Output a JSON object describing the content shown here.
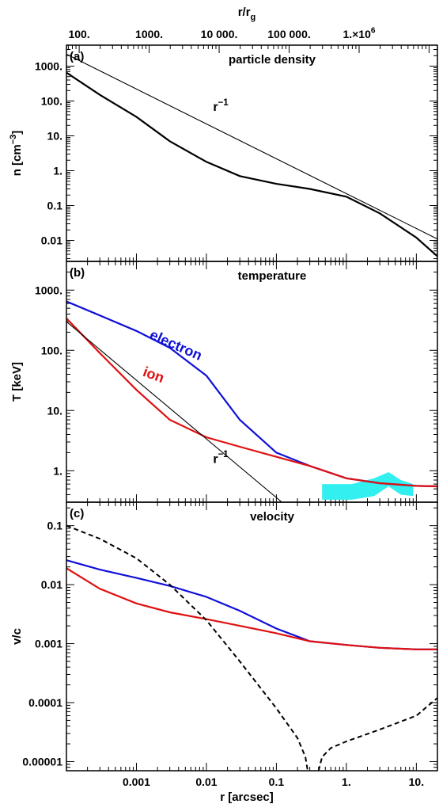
{
  "top_axis": {
    "label": "r/r",
    "label_sub": "g",
    "ticks": [
      {
        "r": 0.000152,
        "label": "100."
      },
      {
        "r": 0.00152,
        "label": "1000."
      },
      {
        "r": 0.0152,
        "label": "10 000."
      },
      {
        "r": 0.152,
        "label": "100 000."
      },
      {
        "r": 1.52,
        "label": "1.×10",
        "sup": "6"
      }
    ]
  },
  "bottom_axis": {
    "label": "r [arcsec]",
    "xlim": [
      0.0001,
      20
    ],
    "ticks": [
      {
        "r": 0.001,
        "label": "0.001"
      },
      {
        "r": 0.01,
        "label": "0.01"
      },
      {
        "r": 0.1,
        "label": "0.1"
      },
      {
        "r": 1,
        "label": "1."
      },
      {
        "r": 10,
        "label": "10."
      }
    ]
  },
  "colors": {
    "electron": "#1010d8",
    "ion": "#e01010",
    "reference": "#000000",
    "observed_band": "#33f0f0"
  },
  "chart_data": [
    {
      "type": "line",
      "panel_label": "(a)",
      "title": "particle density",
      "ylabel": "n [cm",
      "ylabel_sup": "−3",
      "ylabel_end": "]",
      "xscale": "log",
      "yscale": "log",
      "xlim": [
        0.0001,
        20
      ],
      "ylim": [
        0.0025,
        4000
      ],
      "yticks": [
        {
          "v": 1000,
          "label": "1000."
        },
        {
          "v": 100,
          "label": "100."
        },
        {
          "v": 10,
          "label": "10."
        },
        {
          "v": 1,
          "label": "1."
        },
        {
          "v": 0.1,
          "label": "0.1"
        },
        {
          "v": 0.01,
          "label": "0.01"
        }
      ],
      "annotations": [
        {
          "text": "r",
          "sup": "−1",
          "x": 0.016,
          "y": 52
        }
      ],
      "series": [
        {
          "role": "density",
          "style": "solid",
          "x": [
            0.0001,
            0.0003,
            0.001,
            0.003,
            0.01,
            0.03,
            0.1,
            0.3,
            1,
            3,
            10,
            20
          ],
          "y": [
            650,
            150,
            35,
            7,
            1.8,
            0.7,
            0.42,
            0.3,
            0.18,
            0.06,
            0.012,
            0.0035
          ]
        },
        {
          "role": "reference",
          "style": "thin",
          "x": [
            0.0001,
            20
          ],
          "y": [
            2200,
            0.011
          ]
        }
      ]
    },
    {
      "type": "line",
      "panel_label": "(b)",
      "title": "temperature",
      "ylabel": "T [keV]",
      "xscale": "log",
      "yscale": "log",
      "xlim": [
        0.0001,
        20
      ],
      "ylim": [
        0.3,
        3000
      ],
      "yticks": [
        {
          "v": 1000,
          "label": "1000."
        },
        {
          "v": 100,
          "label": "100."
        },
        {
          "v": 10,
          "label": "10."
        },
        {
          "v": 1,
          "label": "1."
        }
      ],
      "annotations": [
        {
          "text": "r",
          "sup": "−1",
          "x": 0.016,
          "y": 1.35
        }
      ],
      "series": [
        {
          "name": "electron",
          "role": "electron",
          "style": "solid",
          "label_x": 0.0015,
          "label_y": 160,
          "label_angle": 24,
          "x": [
            0.0001,
            0.0003,
            0.001,
            0.003,
            0.01,
            0.03,
            0.1,
            0.3,
            1,
            3,
            10,
            20
          ],
          "y": [
            650,
            380,
            210,
            110,
            38,
            7,
            2,
            1.2,
            0.75,
            0.62,
            0.56,
            0.55
          ]
        },
        {
          "name": "ion",
          "role": "ion",
          "style": "solid",
          "label_x": 0.0012,
          "label_y": 38,
          "label_angle": 20,
          "x": [
            0.0001,
            0.0003,
            0.001,
            0.003,
            0.01,
            0.03,
            0.1,
            0.3,
            1,
            3,
            10,
            20
          ],
          "y": [
            340,
            90,
            22,
            7,
            3.6,
            2.5,
            1.7,
            1.2,
            0.75,
            0.62,
            0.56,
            0.55
          ]
        },
        {
          "role": "reference",
          "style": "thin",
          "x": [
            0.0001,
            0.12
          ],
          "y": [
            300,
            0.3
          ]
        }
      ],
      "bands": [
        {
          "role": "observed_band",
          "x": [
            0.45,
            1.2,
            2.5,
            4,
            6,
            9,
            9,
            6,
            4,
            2.5,
            1.2,
            0.45
          ],
          "y": [
            0.6,
            0.6,
            0.75,
            0.95,
            0.7,
            0.6,
            0.38,
            0.4,
            0.55,
            0.38,
            0.33,
            0.33
          ]
        }
      ]
    },
    {
      "type": "line",
      "panel_label": "(c)",
      "title": "velocity",
      "ylabel": "v/c",
      "xscale": "log",
      "yscale": "log",
      "xlim": [
        0.0001,
        20
      ],
      "ylim": [
        7e-06,
        0.25
      ],
      "yticks": [
        {
          "v": 0.1,
          "label": "0.1"
        },
        {
          "v": 0.01,
          "label": "0.01"
        },
        {
          "v": 0.001,
          "label": "0.001"
        },
        {
          "v": 0.0001,
          "label": "0.0001"
        },
        {
          "v": 1e-05,
          "label": "0.00001"
        }
      ],
      "annotations": [],
      "series": [
        {
          "role": "electron",
          "style": "solid",
          "x": [
            0.0001,
            0.0003,
            0.001,
            0.003,
            0.01,
            0.03,
            0.1,
            0.3,
            1,
            3,
            10,
            20
          ],
          "y": [
            0.026,
            0.018,
            0.013,
            0.0095,
            0.0062,
            0.0036,
            0.0018,
            0.0011,
            0.00095,
            0.00085,
            0.0008,
            0.0008
          ]
        },
        {
          "role": "ion",
          "style": "solid",
          "x": [
            0.0001,
            0.0003,
            0.001,
            0.003,
            0.01,
            0.03,
            0.1,
            0.3,
            1,
            3,
            10,
            20
          ],
          "y": [
            0.019,
            0.0085,
            0.0048,
            0.0034,
            0.0026,
            0.002,
            0.0015,
            0.0011,
            0.00095,
            0.00085,
            0.0008,
            0.0008
          ]
        },
        {
          "role": "inflow",
          "style": "dashed",
          "x": [
            0.0001,
            0.0003,
            0.001,
            0.003,
            0.01,
            0.03,
            0.1,
            0.2,
            0.26,
            0.28
          ],
          "y": [
            0.1,
            0.06,
            0.028,
            0.01,
            0.0025,
            0.0005,
            8e-05,
            2.5e-05,
            1.2e-05,
            7e-06
          ]
        },
        {
          "role": "inflow",
          "style": "dashed",
          "x": [
            0.4,
            0.45,
            0.6,
            1,
            3,
            10,
            20
          ],
          "y": [
            7e-06,
            1.2e-05,
            1.7e-05,
            2.2e-05,
            3.5e-05,
            6e-05,
            0.00012
          ]
        }
      ]
    }
  ]
}
